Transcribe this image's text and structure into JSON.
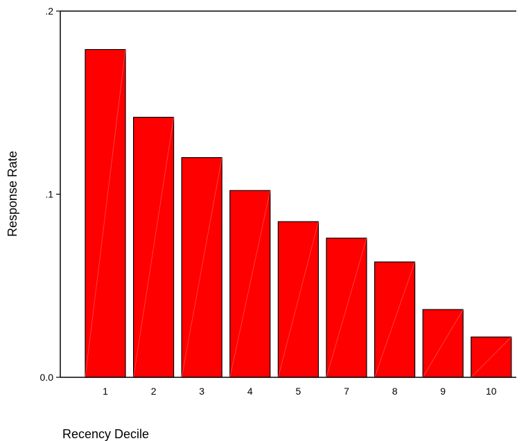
{
  "chart_data": {
    "type": "bar",
    "categories": [
      "1",
      "2",
      "3",
      "4",
      "5",
      "7",
      "8",
      "9",
      "10"
    ],
    "values": [
      0.179,
      0.142,
      0.12,
      0.102,
      0.085,
      0.076,
      0.063,
      0.037,
      0.022
    ],
    "title": "",
    "xlabel": "Recency Decile",
    "ylabel": "Response Rate",
    "ylim": [
      0,
      0.2
    ],
    "yticks": [
      {
        "value": 0,
        "label": "0.0"
      },
      {
        "value": 0.1,
        "label": ".1"
      },
      {
        "value": 0.2,
        "label": ".2"
      }
    ],
    "grid": false,
    "colors": {
      "bar": "#ff0000",
      "bar_edge": "#000000"
    }
  }
}
